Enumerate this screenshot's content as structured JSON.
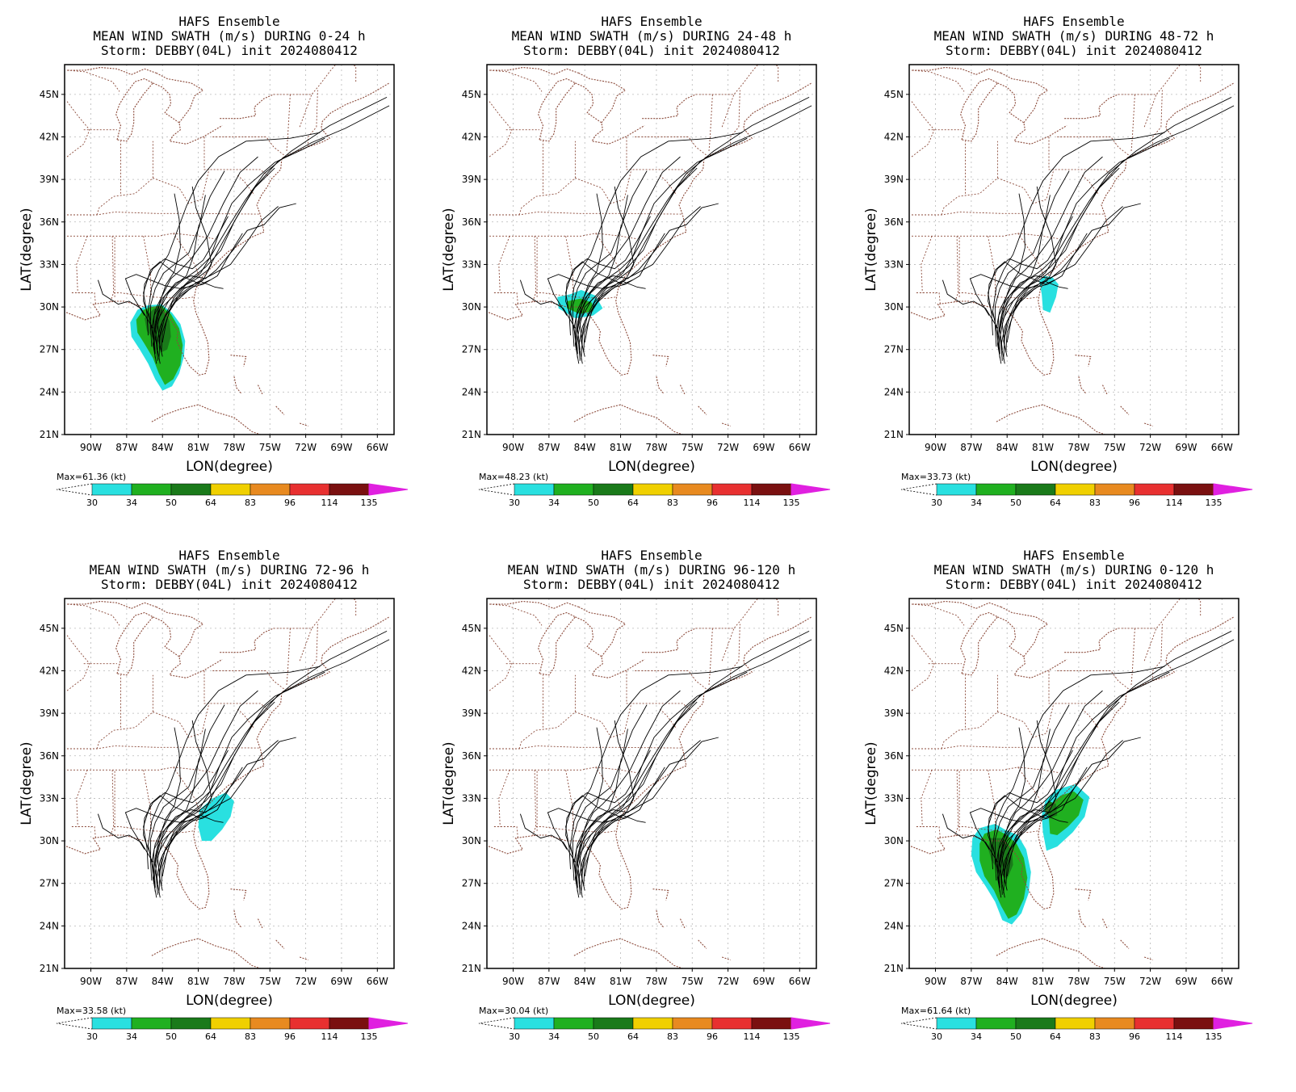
{
  "model": "HAFS Ensemble",
  "storm_line": "Storm: DEBBY(04L) init 2024080412",
  "x_axis_label": "LON(degree)",
  "y_axis_label": "LAT(degree)",
  "lat_ticks": [
    "45N",
    "42N",
    "39N",
    "36N",
    "33N",
    "30N",
    "27N",
    "24N",
    "21N"
  ],
  "lon_ticks": [
    "90W",
    "87W",
    "84W",
    "81W",
    "78W",
    "75W",
    "72W",
    "69W",
    "66W"
  ],
  "colorbar": {
    "levels": [
      "30",
      "34",
      "50",
      "64",
      "83",
      "96",
      "114",
      "135"
    ],
    "colors": [
      "#29e0e0",
      "#20b020",
      "#1a7a1a",
      "#f0d000",
      "#e88a20",
      "#e83030",
      "#7a1010",
      "#e020e0"
    ]
  },
  "colors": {
    "border": "#8b4a3a",
    "grid": "#b8b8b8",
    "track": "#000000",
    "tropical_storm": "#29e0e0",
    "strong_ts": "#20b020",
    "hurricane": "#1a7a1a"
  },
  "panels": [
    {
      "title": "MEAN WIND SWATH (m/s) DURING  0-24 h",
      "max": "Max=61.36 (kt)",
      "swath": "gulf"
    },
    {
      "title": "MEAN WIND SWATH (m/s) DURING 24-48 h",
      "max": "Max=48.23 (kt)",
      "swath": "bigbend"
    },
    {
      "title": "MEAN WIND SWATH (m/s) DURING 48-72 h",
      "max": "Max=33.73 (kt)",
      "swath": "atlantic_small"
    },
    {
      "title": "MEAN WIND SWATH (m/s) DURING 72-96 h",
      "max": "Max=33.58 (kt)",
      "swath": "carolina"
    },
    {
      "title": "MEAN WIND SWATH (m/s) DURING 96-120 h",
      "max": "Max=30.04 (kt)",
      "swath": "none"
    },
    {
      "title": "MEAN WIND SWATH (m/s) DURING 0-120 h",
      "max": "Max=61.64 (kt)",
      "swath": "all"
    }
  ]
}
